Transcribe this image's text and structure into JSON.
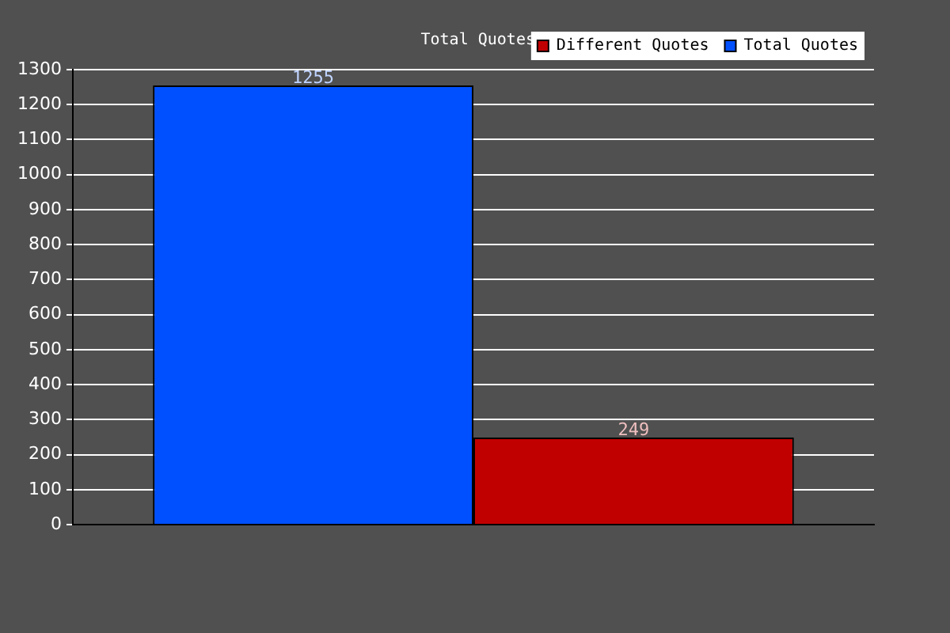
{
  "chart_data": {
    "type": "bar",
    "title": "Total Quotes",
    "categories": [
      null
    ],
    "series": [
      {
        "name": "Total Quotes",
        "color": "#0050ff",
        "values": [
          1255
        ]
      },
      {
        "name": "Different Quotes",
        "color": "#c00000",
        "values": [
          249
        ]
      }
    ],
    "ylim": [
      0,
      1300
    ],
    "yticks": [
      0,
      100,
      200,
      300,
      400,
      500,
      600,
      700,
      800,
      900,
      1000,
      1100,
      1200,
      1300
    ],
    "grid": "y",
    "legend": "top right",
    "data_labels": true
  }
}
